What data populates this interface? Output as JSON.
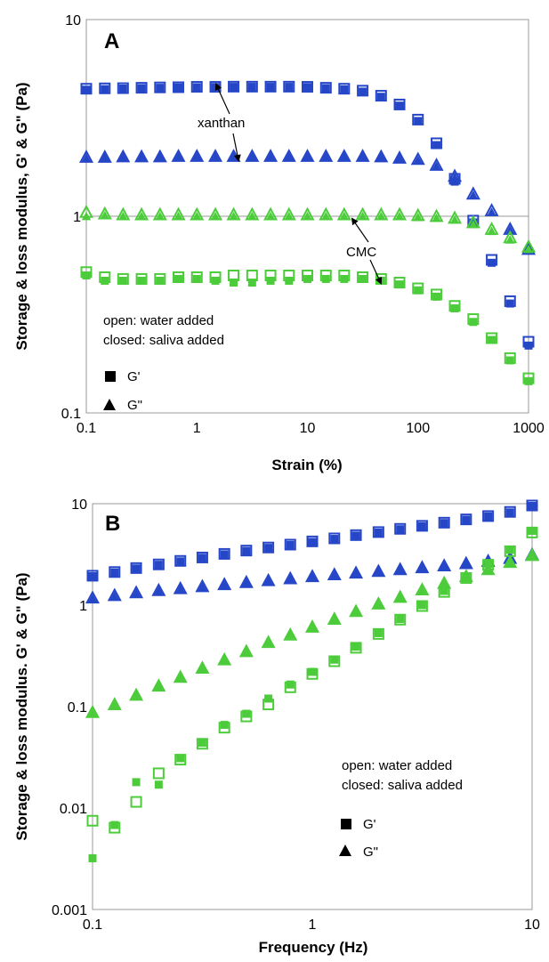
{
  "chart_data": [
    {
      "panel": "A",
      "type": "scatter",
      "xlabel": "Strain (%)",
      "ylabel": "Storage & loss modulus, G' & G\" (Pa)",
      "x_scale": "log",
      "y_scale": "log",
      "xlim": [
        0.1,
        1000
      ],
      "ylim": [
        0.1,
        10
      ],
      "x_ticks": [
        "0.1",
        "1",
        "10",
        "100",
        "1000"
      ],
      "y_ticks": [
        "0.1",
        "1",
        "10"
      ],
      "gridlines_y": [
        1
      ],
      "legend": {
        "placement": "bottom-left",
        "notes": [
          "open: water added",
          "closed: saliva added"
        ],
        "entries": [
          {
            "marker": "square",
            "label": "G'"
          },
          {
            "marker": "triangle",
            "label": "G\""
          }
        ]
      },
      "annotations": [
        "xanthan",
        "CMC"
      ],
      "series": [
        {
          "name": "xanthan G' water",
          "marker": "square",
          "filled": false,
          "color": "#2646c8",
          "x": [
            0.1,
            0.147,
            0.215,
            0.316,
            0.464,
            0.681,
            1,
            1.47,
            2.15,
            3.16,
            4.64,
            6.81,
            10,
            14.7,
            21.5,
            31.6,
            46.4,
            68.1,
            100,
            147,
            215,
            316,
            464,
            681,
            1000
          ],
          "y": [
            4.45,
            4.47,
            4.48,
            4.5,
            4.52,
            4.53,
            4.55,
            4.55,
            4.56,
            4.56,
            4.56,
            4.56,
            4.55,
            4.5,
            4.45,
            4.35,
            4.1,
            3.7,
            3.1,
            2.35,
            1.55,
            0.95,
            0.6,
            0.37,
            0.23
          ]
        },
        {
          "name": "xanthan G' saliva",
          "marker": "square",
          "filled": true,
          "color": "#2646c8",
          "x": [
            0.1,
            0.147,
            0.215,
            0.316,
            0.464,
            0.681,
            1,
            1.47,
            2.15,
            3.16,
            4.64,
            6.81,
            10,
            14.7,
            21.5,
            31.6,
            46.4,
            68.1,
            100,
            147,
            215,
            316,
            464,
            681,
            1000
          ],
          "y": [
            4.4,
            4.43,
            4.46,
            4.48,
            4.5,
            4.52,
            4.53,
            4.54,
            4.55,
            4.55,
            4.55,
            4.55,
            4.54,
            4.48,
            4.42,
            4.3,
            4.05,
            3.65,
            3.05,
            2.3,
            1.5,
            0.93,
            0.58,
            0.36,
            0.22
          ]
        },
        {
          "name": "xanthan G\" water",
          "marker": "triangle",
          "filled": false,
          "color": "#2646c8",
          "x": [
            0.1,
            0.147,
            0.215,
            0.316,
            0.464,
            0.681,
            1,
            1.47,
            2.15,
            3.16,
            4.64,
            6.81,
            10,
            14.7,
            21.5,
            31.6,
            46.4,
            68.1,
            100,
            147,
            215,
            316,
            464,
            681,
            1000
          ],
          "y": [
            2.0,
            2.0,
            2.01,
            2.01,
            2.01,
            2.02,
            2.02,
            2.02,
            2.02,
            2.02,
            2.02,
            2.02,
            2.02,
            2.02,
            2.02,
            2.02,
            2.01,
            1.98,
            1.95,
            1.82,
            1.6,
            1.3,
            1.07,
            0.86,
            0.68
          ]
        },
        {
          "name": "xanthan G\" saliva",
          "marker": "triangle",
          "filled": true,
          "color": "#2646c8",
          "x": [
            0.1,
            0.147,
            0.215,
            0.316,
            0.464,
            0.681,
            1,
            1.47,
            2.15,
            3.16,
            4.64,
            6.81,
            10,
            14.7,
            21.5,
            31.6,
            46.4,
            68.1,
            100,
            147,
            215,
            316,
            464,
            681,
            1000
          ],
          "y": [
            1.98,
            1.99,
            2.0,
            2.0,
            2.0,
            2.01,
            2.01,
            2.01,
            2.01,
            2.01,
            2.01,
            2.01,
            2.01,
            2.01,
            2.01,
            2.01,
            2.0,
            1.97,
            1.93,
            1.8,
            1.58,
            1.28,
            1.05,
            0.85,
            0.67
          ]
        },
        {
          "name": "CMC G\" water",
          "marker": "triangle",
          "filled": false,
          "color": "#4ccc3a",
          "x": [
            0.1,
            0.147,
            0.215,
            0.316,
            0.464,
            0.681,
            1,
            1.47,
            2.15,
            3.16,
            4.64,
            6.81,
            10,
            14.7,
            21.5,
            31.6,
            46.4,
            68.1,
            100,
            147,
            215,
            316,
            464,
            681,
            1000
          ],
          "y": [
            1.05,
            1.03,
            1.02,
            1.02,
            1.02,
            1.02,
            1.02,
            1.02,
            1.02,
            1.02,
            1.02,
            1.02,
            1.02,
            1.02,
            1.02,
            1.02,
            1.02,
            1.02,
            1.01,
            1.0,
            0.98,
            0.93,
            0.86,
            0.78,
            0.7
          ]
        },
        {
          "name": "CMC G\" saliva",
          "marker": "triangle",
          "filled": true,
          "color": "#4ccc3a",
          "x": [
            0.1,
            0.147,
            0.215,
            0.316,
            0.464,
            0.681,
            1,
            1.47,
            2.15,
            3.16,
            4.64,
            6.81,
            10,
            14.7,
            21.5,
            31.6,
            46.4,
            68.1,
            100,
            147,
            215,
            316,
            464,
            681,
            1000
          ],
          "y": [
            1.0,
            1.01,
            1.0,
            1.0,
            1.0,
            1.0,
            1.0,
            1.0,
            1.0,
            1.0,
            1.0,
            1.0,
            1.0,
            1.0,
            1.0,
            1.0,
            1.0,
            1.0,
            0.99,
            0.98,
            0.96,
            0.91,
            0.84,
            0.76,
            0.68
          ]
        },
        {
          "name": "CMC G' water",
          "marker": "square",
          "filled": false,
          "color": "#4ccc3a",
          "x": [
            0.1,
            0.147,
            0.215,
            0.316,
            0.464,
            0.681,
            1,
            1.47,
            2.15,
            3.16,
            4.64,
            6.81,
            10,
            14.7,
            21.5,
            31.6,
            46.4,
            68.1,
            100,
            147,
            215,
            316,
            464,
            681,
            1000
          ],
          "y": [
            0.52,
            0.49,
            0.48,
            0.48,
            0.48,
            0.49,
            0.49,
            0.49,
            0.5,
            0.5,
            0.5,
            0.5,
            0.5,
            0.5,
            0.5,
            0.49,
            0.48,
            0.46,
            0.43,
            0.4,
            0.35,
            0.3,
            0.24,
            0.19,
            0.15
          ]
        },
        {
          "name": "CMC G' saliva",
          "marker": "square",
          "filled": true,
          "color": "#4ccc3a",
          "x": [
            0.1,
            0.147,
            0.215,
            0.316,
            0.464,
            0.681,
            1,
            1.47,
            2.15,
            3.16,
            4.64,
            6.81,
            10,
            14.7,
            21.5,
            31.6,
            46.4,
            68.1,
            100,
            147,
            215,
            316,
            464,
            681,
            1000
          ],
          "y": [
            0.5,
            0.47,
            0.47,
            0.47,
            0.47,
            0.48,
            0.48,
            0.47,
            0.46,
            0.46,
            0.47,
            0.47,
            0.48,
            0.48,
            0.48,
            0.48,
            0.47,
            0.45,
            0.42,
            0.39,
            0.34,
            0.29,
            0.235,
            0.185,
            0.145
          ]
        }
      ]
    },
    {
      "panel": "B",
      "type": "scatter",
      "xlabel": "Frequency (Hz)",
      "ylabel": "Storage & loss modulus. G' & G\" (Pa)",
      "x_scale": "log",
      "y_scale": "log",
      "xlim": [
        0.1,
        10
      ],
      "ylim": [
        0.001,
        10
      ],
      "x_ticks": [
        "0.1",
        "1",
        "10"
      ],
      "y_ticks": [
        "0.001",
        "0.01",
        "0.1",
        "1",
        "10"
      ],
      "legend": {
        "placement": "bottom-right",
        "notes": [
          "open: water added",
          "closed: saliva added"
        ],
        "entries": [
          {
            "marker": "square",
            "label": "G'"
          },
          {
            "marker": "triangle",
            "label": "G\""
          }
        ]
      },
      "series": [
        {
          "name": "xanthan G' water",
          "marker": "square",
          "filled": false,
          "color": "#2646c8",
          "x": [
            0.1,
            0.126,
            0.158,
            0.2,
            0.251,
            0.316,
            0.398,
            0.501,
            0.631,
            0.794,
            1,
            1.26,
            1.58,
            2,
            2.51,
            3.16,
            3.98,
            5.01,
            6.31,
            7.94,
            10
          ],
          "y": [
            1.95,
            2.12,
            2.32,
            2.52,
            2.73,
            2.95,
            3.2,
            3.45,
            3.7,
            3.95,
            4.25,
            4.55,
            4.9,
            5.25,
            5.65,
            6.05,
            6.5,
            7.0,
            7.55,
            8.3,
            9.6
          ]
        },
        {
          "name": "xanthan G' saliva",
          "marker": "square",
          "filled": true,
          "color": "#2646c8",
          "x": [
            0.1,
            0.126,
            0.158,
            0.2,
            0.251,
            0.316,
            0.398,
            0.501,
            0.631,
            0.794,
            1,
            1.26,
            1.58,
            2,
            2.51,
            3.16,
            3.98,
            5.01,
            6.31,
            7.94,
            10
          ],
          "y": [
            1.93,
            2.1,
            2.3,
            2.5,
            2.7,
            2.93,
            3.17,
            3.42,
            3.67,
            3.92,
            4.2,
            4.5,
            4.85,
            5.2,
            5.6,
            6.0,
            6.45,
            6.95,
            7.5,
            8.2,
            9.5
          ]
        },
        {
          "name": "xanthan G\" water",
          "marker": "triangle",
          "filled": false,
          "color": "#2646c8",
          "x": [
            0.1,
            0.126,
            0.158,
            0.2,
            0.251,
            0.316,
            0.398,
            0.501,
            0.631,
            0.794,
            1,
            1.26,
            1.58,
            2,
            2.51,
            3.16,
            3.98,
            5.01,
            6.31,
            7.94,
            10
          ],
          "y": [
            1.18,
            1.25,
            1.33,
            1.4,
            1.46,
            1.53,
            1.6,
            1.68,
            1.75,
            1.83,
            1.92,
            2.0,
            2.08,
            2.16,
            2.25,
            2.35,
            2.45,
            2.58,
            2.72,
            2.9,
            3.15
          ]
        },
        {
          "name": "xanthan G\" saliva",
          "marker": "triangle",
          "filled": true,
          "color": "#2646c8",
          "x": [
            0.1,
            0.126,
            0.158,
            0.2,
            0.251,
            0.316,
            0.398,
            0.501,
            0.631,
            0.794,
            1,
            1.26,
            1.58,
            2,
            2.51,
            3.16,
            3.98,
            5.01,
            6.31,
            7.94,
            10
          ],
          "y": [
            1.16,
            1.23,
            1.31,
            1.38,
            1.44,
            1.51,
            1.58,
            1.66,
            1.73,
            1.81,
            1.9,
            1.98,
            2.06,
            2.14,
            2.23,
            2.33,
            2.43,
            2.56,
            2.7,
            2.88,
            3.1
          ]
        },
        {
          "name": "CMC G\" water",
          "marker": "triangle",
          "filled": false,
          "color": "#4ccc3a",
          "x": [
            0.1,
            0.126,
            0.158,
            0.2,
            0.251,
            0.316,
            0.398,
            0.501,
            0.631,
            0.794,
            1,
            1.26,
            1.58,
            2,
            2.51,
            3.16,
            3.98,
            5.01,
            6.31,
            7.94,
            10
          ],
          "y": [
            0.088,
            0.105,
            0.13,
            0.16,
            0.195,
            0.24,
            0.29,
            0.35,
            0.43,
            0.51,
            0.61,
            0.73,
            0.87,
            1.03,
            1.2,
            1.42,
            1.65,
            1.92,
            2.25,
            2.65,
            3.1
          ]
        },
        {
          "name": "CMC G\" saliva",
          "marker": "triangle",
          "filled": true,
          "color": "#4ccc3a",
          "x": [
            0.1,
            0.126,
            0.158,
            0.2,
            0.251,
            0.316,
            0.398,
            0.501,
            0.631,
            0.794,
            1,
            1.26,
            1.58,
            2,
            2.51,
            3.16,
            3.98,
            5.01,
            6.31,
            7.94,
            10
          ],
          "y": [
            0.087,
            0.104,
            0.129,
            0.159,
            0.194,
            0.238,
            0.288,
            0.348,
            0.428,
            0.508,
            0.605,
            0.725,
            0.865,
            1.02,
            1.19,
            1.4,
            1.63,
            1.9,
            2.23,
            2.62,
            3.05
          ]
        },
        {
          "name": "CMC G' water",
          "marker": "square",
          "filled": false,
          "color": "#4ccc3a",
          "x": [
            0.1,
            0.126,
            0.158,
            0.2,
            0.251,
            0.316,
            0.398,
            0.501,
            0.631,
            0.794,
            1,
            1.26,
            1.58,
            2,
            2.51,
            3.16,
            3.98,
            5.01,
            6.31,
            7.94,
            10
          ],
          "y": [
            0.0075,
            0.0064,
            0.0115,
            0.022,
            0.03,
            0.043,
            0.062,
            0.08,
            0.105,
            0.155,
            0.21,
            0.28,
            0.38,
            0.52,
            0.72,
            0.98,
            1.35,
            1.85,
            2.5,
            3.4,
            5.2
          ]
        },
        {
          "name": "CMC G' saliva",
          "marker": "square",
          "filled": true,
          "color": "#4ccc3a",
          "x": [
            0.1,
            0.126,
            0.158,
            0.2,
            0.251,
            0.316,
            0.398,
            0.501,
            0.631,
            0.794,
            1,
            1.26,
            1.58,
            2,
            2.51,
            3.16,
            3.98,
            5.01,
            6.31,
            7.94,
            10
          ],
          "y": [
            0.0032,
            0.0068,
            0.018,
            0.017,
            0.031,
            0.044,
            0.066,
            0.085,
            0.12,
            0.165,
            0.22,
            0.29,
            0.39,
            0.53,
            0.73,
            1.0,
            1.38,
            1.9,
            2.55,
            3.5,
            5.4
          ]
        }
      ]
    }
  ]
}
